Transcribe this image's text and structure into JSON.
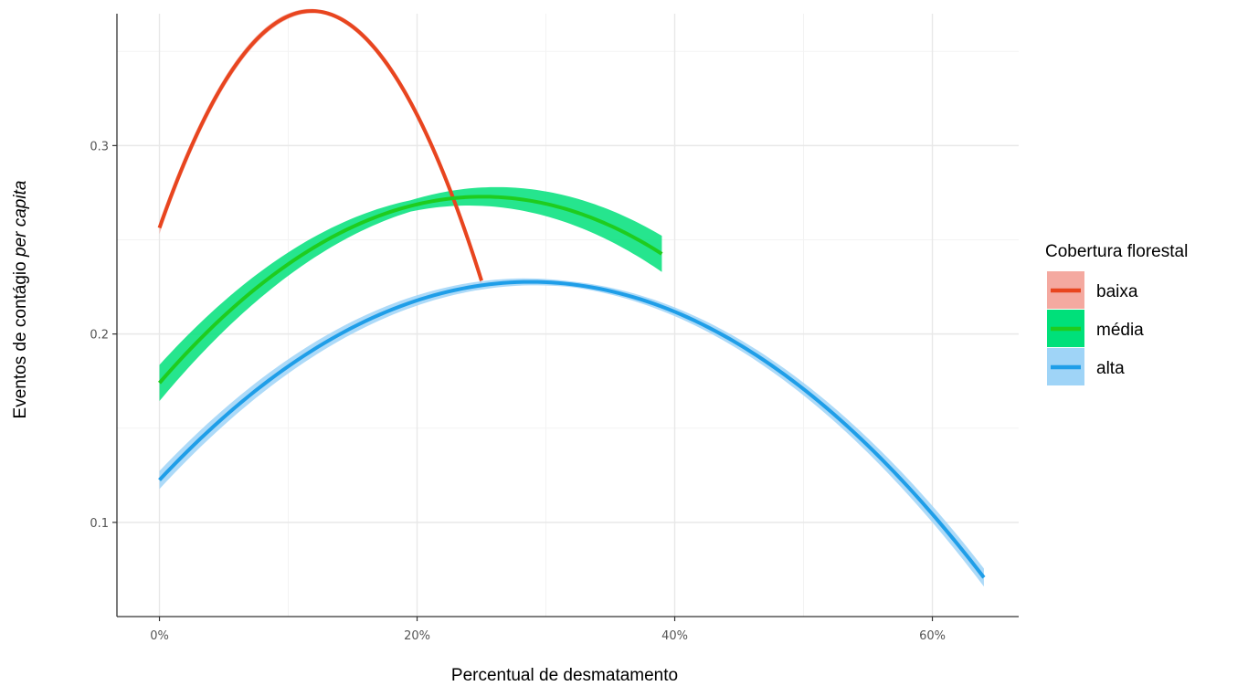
{
  "chart_data": {
    "type": "line",
    "xlabel": "Percentual de desmatamento",
    "ylabel_main": "Eventos de contágio ",
    "ylabel_italic": "per capita",
    "xlim": [
      -0.033,
      0.667
    ],
    "ylim": [
      0.05,
      0.37
    ],
    "x_ticks": [
      0,
      0.2,
      0.4,
      0.6
    ],
    "x_tick_labels": [
      "0%",
      "20%",
      "40%",
      "60%"
    ],
    "y_ticks": [
      0.1,
      0.2,
      0.3
    ],
    "y_tick_labels": [
      "0.1",
      "0.2",
      "0.3"
    ],
    "grid": true,
    "legend": {
      "title": "Cobertura florestal",
      "position": "right"
    },
    "series": [
      {
        "name": "baixa",
        "color": "#e8451f",
        "band_color": "#f4a9a0",
        "x_range": [
          0,
          0.25
        ],
        "coefficients": [
          0.2563,
          1.948,
          -8.24
        ],
        "band_halfwidth": 0.002
      },
      {
        "name": "média",
        "color": "#1fcc1f",
        "band_color": "#00e07a",
        "x_range": [
          0,
          0.39
        ],
        "coefficients": [
          0.174,
          0.788,
          -1.57
        ],
        "band_halfwidth": 0.006
      },
      {
        "name": "alta",
        "color": "#1f9ee8",
        "band_color": "#9fd4f7",
        "x_range": [
          0,
          0.64
        ],
        "coefficients": [
          0.1225,
          0.73,
          -1.267
        ],
        "band_halfwidth": 0.003
      }
    ]
  }
}
